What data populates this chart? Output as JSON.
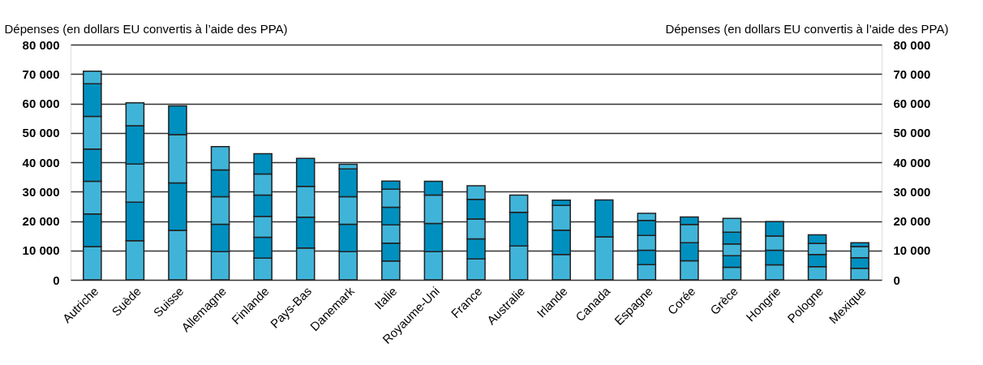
{
  "chart_data": {
    "type": "bar",
    "stacked": true,
    "ylabel": "Dépenses (en dollars EU convertis à l’aide des PPA)",
    "y2label": "Dépenses (en dollars EU convertis à l’aide des PPA)",
    "categories": [
      "Autriche",
      "Suède",
      "Suisse",
      "Allemagne",
      "Finlande",
      "Pays-Bas",
      "Danemark",
      "Italie",
      "Royaume-Uni",
      "France",
      "Australie",
      "Irlande",
      "Canada",
      "Espagne",
      "Corée",
      "Grèce",
      "Hongrie",
      "Pologne",
      "Mexique"
    ],
    "series": [
      {
        "color": "#40b4d8",
        "values": [
          11300,
          13300,
          16800,
          9600,
          7400,
          10800,
          9600,
          6400,
          9600,
          7100,
          11500,
          8600,
          14600,
          5200,
          6500,
          4300,
          5100,
          4500,
          3900
        ]
      },
      {
        "color": "#0090c0",
        "values": [
          11100,
          13100,
          16200,
          9300,
          7100,
          10500,
          9300,
          6100,
          9600,
          6800,
          11500,
          8300,
          12600,
          4900,
          6100,
          3900,
          5000,
          4100,
          3600
        ]
      },
      {
        "color": "#40b4d8",
        "values": [
          11100,
          13000,
          16400,
          9400,
          7100,
          10500,
          9400,
          6200,
          9600,
          6800,
          5800,
          8400,
          null,
          5000,
          6200,
          4000,
          4800,
          3800,
          3800
        ]
      },
      {
        "color": "#0090c0",
        "values": [
          11000,
          13000,
          9800,
          9100,
          7200,
          9500,
          9400,
          6000,
          4700,
          6700,
          null,
          1800,
          null,
          5100,
          2600,
          4000,
          4900,
          2900,
          1300
        ]
      },
      {
        "color": "#40b4d8",
        "values": [
          11100,
          7800,
          null,
          7900,
          7200,
          null,
          1600,
          6100,
          null,
          4600,
          null,
          null,
          null,
          2400,
          null,
          4700,
          null,
          null,
          null
        ]
      },
      {
        "color": "#0090c0",
        "values": [
          11100,
          null,
          null,
          null,
          6900,
          null,
          null,
          2800,
          null,
          null,
          null,
          null,
          null,
          null,
          null,
          null,
          null,
          null,
          null
        ]
      },
      {
        "color": "#40b4d8",
        "values": [
          4300,
          null,
          null,
          null,
          null,
          null,
          null,
          null,
          null,
          null,
          null,
          null,
          null,
          null,
          null,
          null,
          null,
          null,
          null
        ]
      }
    ],
    "ylim": [
      0,
      80000
    ],
    "yticks": [
      {
        "value": 0,
        "label": "0"
      },
      {
        "value": 10000,
        "label": "10 000"
      },
      {
        "value": 20000,
        "label": "20 000"
      },
      {
        "value": 30000,
        "label": "30 000"
      },
      {
        "value": 40000,
        "label": "40 000"
      },
      {
        "value": 50000,
        "label": "50 000"
      },
      {
        "value": 60000,
        "label": "60 000"
      },
      {
        "value": 70000,
        "label": "70 000"
      },
      {
        "value": 80000,
        "label": "80 000"
      }
    ],
    "y2lim": [
      0,
      80000
    ],
    "y2ticks": [
      {
        "value": 0,
        "label": "0"
      },
      {
        "value": 10000,
        "label": "10 000"
      },
      {
        "value": 20000,
        "label": "20 000"
      },
      {
        "value": 30000,
        "label": "30 000"
      },
      {
        "value": 40000,
        "label": "40 000"
      },
      {
        "value": 50000,
        "label": "50 000"
      },
      {
        "value": 60000,
        "label": "60 000"
      },
      {
        "value": 70000,
        "label": "70 000"
      },
      {
        "value": 80000,
        "label": "80 000"
      }
    ],
    "grid": "y"
  }
}
